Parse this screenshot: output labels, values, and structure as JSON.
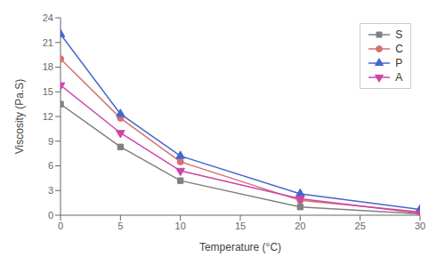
{
  "chart_data": {
    "type": "line",
    "xlabel": "Temperature (°C)",
    "ylabel": "Viscosity (Pa.S)",
    "x": [
      0,
      5,
      10,
      20,
      30
    ],
    "series": [
      {
        "name": "S",
        "color": "#808080",
        "marker": "square",
        "line_style": "solid",
        "values": [
          13.5,
          8.3,
          4.2,
          1.0,
          0.15
        ]
      },
      {
        "name": "C",
        "color": "#d47070",
        "marker": "circle",
        "line_style": "solid",
        "values": [
          19.0,
          11.8,
          6.5,
          1.8,
          0.4
        ]
      },
      {
        "name": "P",
        "color": "#4466cc",
        "marker": "triangle_up",
        "line_style": "solid",
        "values": [
          22.0,
          12.3,
          7.2,
          2.6,
          0.7
        ]
      },
      {
        "name": "A",
        "color": "#cc44aa",
        "marker": "triangle_down",
        "line_style": "solid",
        "values": [
          15.8,
          10.0,
          5.4,
          2.0,
          0.25
        ]
      }
    ],
    "xlim": [
      0,
      30
    ],
    "ylim": [
      0,
      24
    ],
    "xticks": [
      0,
      5,
      10,
      15,
      20,
      25,
      30
    ],
    "yticks": [
      0,
      3,
      6,
      9,
      12,
      15,
      18,
      21,
      24
    ],
    "legend": "upper right",
    "grid": false
  }
}
